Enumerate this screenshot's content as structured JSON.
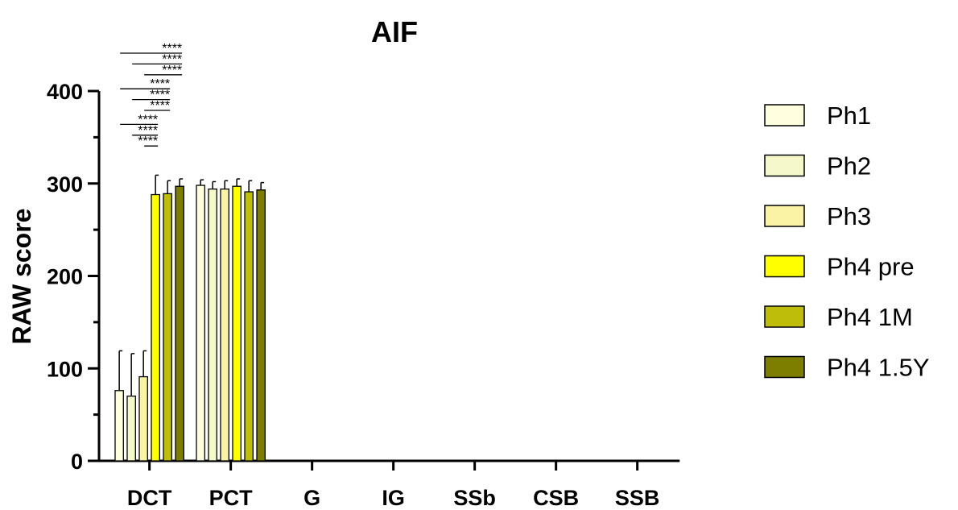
{
  "chart_data": {
    "type": "bar",
    "title": "AIF",
    "xlabel": "",
    "ylabel": "RAW score",
    "ylim": [
      0,
      400
    ],
    "yticks": [
      0,
      100,
      200,
      300,
      400
    ],
    "categories": [
      "DCT",
      "PCT",
      "G",
      "IG",
      "SSb",
      "CSB",
      "SSB"
    ],
    "series": [
      {
        "name": "Ph1",
        "color": "#FFFFE0",
        "values": [
          76,
          298,
          0,
          0,
          0,
          0,
          0
        ],
        "errors": [
          43,
          6,
          0,
          0,
          0,
          0,
          0
        ]
      },
      {
        "name": "Ph2",
        "color": "#F5F8C8",
        "values": [
          70,
          294,
          0,
          0,
          0,
          0,
          0
        ],
        "errors": [
          46,
          8,
          0,
          0,
          0,
          0,
          0
        ]
      },
      {
        "name": "Ph3",
        "color": "#FAF3A6",
        "values": [
          91,
          294,
          0,
          0,
          0,
          0,
          0
        ],
        "errors": [
          28,
          9,
          0,
          0,
          0,
          0,
          0
        ]
      },
      {
        "name": "Ph4 pre",
        "color": "#FFFF00",
        "values": [
          288,
          297,
          0,
          0,
          0,
          0,
          0
        ],
        "errors": [
          21,
          8,
          0,
          0,
          0,
          0,
          0
        ]
      },
      {
        "name": "Ph4 1M",
        "color": "#BDBD0A",
        "values": [
          289,
          291,
          0,
          0,
          0,
          0,
          0
        ],
        "errors": [
          14,
          12,
          0,
          0,
          0,
          0,
          0
        ]
      },
      {
        "name": "Ph4 1.5Y",
        "color": "#7D7D00",
        "values": [
          297,
          293,
          0,
          0,
          0,
          0,
          0
        ],
        "errors": [
          8,
          8,
          0,
          0,
          0,
          0,
          0
        ]
      }
    ],
    "significance": [
      {
        "from": "Ph1",
        "to": "Ph4 1.5Y",
        "label": "****"
      },
      {
        "from": "Ph2",
        "to": "Ph4 1.5Y",
        "label": "****"
      },
      {
        "from": "Ph3",
        "to": "Ph4 1.5Y",
        "label": "****"
      },
      {
        "from": "Ph1",
        "to": "Ph4 1M",
        "label": "****"
      },
      {
        "from": "Ph2",
        "to": "Ph4 1M",
        "label": "****"
      },
      {
        "from": "Ph3",
        "to": "Ph4 1M",
        "label": "****"
      },
      {
        "from": "Ph1",
        "to": "Ph4 pre",
        "label": "****"
      },
      {
        "from": "Ph2",
        "to": "Ph4 pre",
        "label": "****"
      },
      {
        "from": "Ph3",
        "to": "Ph4 pre",
        "label": "****"
      }
    ],
    "legend_position": "right",
    "grid": false
  }
}
